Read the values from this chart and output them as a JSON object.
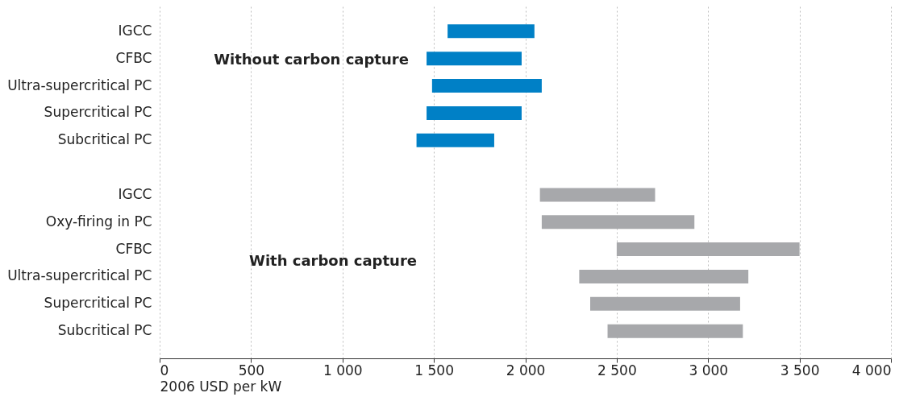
{
  "chart_data": {
    "type": "bar",
    "orientation": "horizontal",
    "xlabel": "2006 USD per kW",
    "categories": [
      "IGCC",
      "CFBC",
      "Ultra-supercritical PC",
      "Supercritical PC",
      "Subcritical PC",
      null,
      "IGCC",
      "Oxy-firing in PC",
      "CFBC",
      "Ultra-supercritical PC",
      "Supercritical PC",
      "Subcritical PC"
    ],
    "base": [
      1575,
      1460,
      1490,
      1460,
      1405,
      null,
      2080,
      2090,
      2500,
      2295,
      2355,
      2450
    ],
    "values": [
      475,
      520,
      600,
      520,
      425,
      null,
      630,
      835,
      1000,
      925,
      820,
      740
    ],
    "colors": [
      "#0080c6",
      "#0080c6",
      "#0080c6",
      "#0080c6",
      "#0080c6",
      null,
      "#a7a8ab",
      "#a7a8ab",
      "#a7a8ab",
      "#a7a8ab",
      "#a7a8ab",
      "#a7a8ab"
    ],
    "xlim": [
      0,
      4000
    ],
    "xticks": [
      0,
      500,
      {
        "value": 1000,
        "label": "1 000"
      },
      {
        "value": 1500,
        "label": "1 500"
      },
      {
        "value": 2000,
        "label": "2 000"
      },
      {
        "value": 2500,
        "label": "2 500"
      },
      {
        "value": 3000,
        "label": "3 000"
      },
      {
        "value": 3500,
        "label": "3 500"
      },
      {
        "value": 4000,
        "label": "4 000"
      }
    ],
    "grid": "x",
    "annotations": [
      "Without carbon capture",
      "With carbon capture"
    ]
  }
}
